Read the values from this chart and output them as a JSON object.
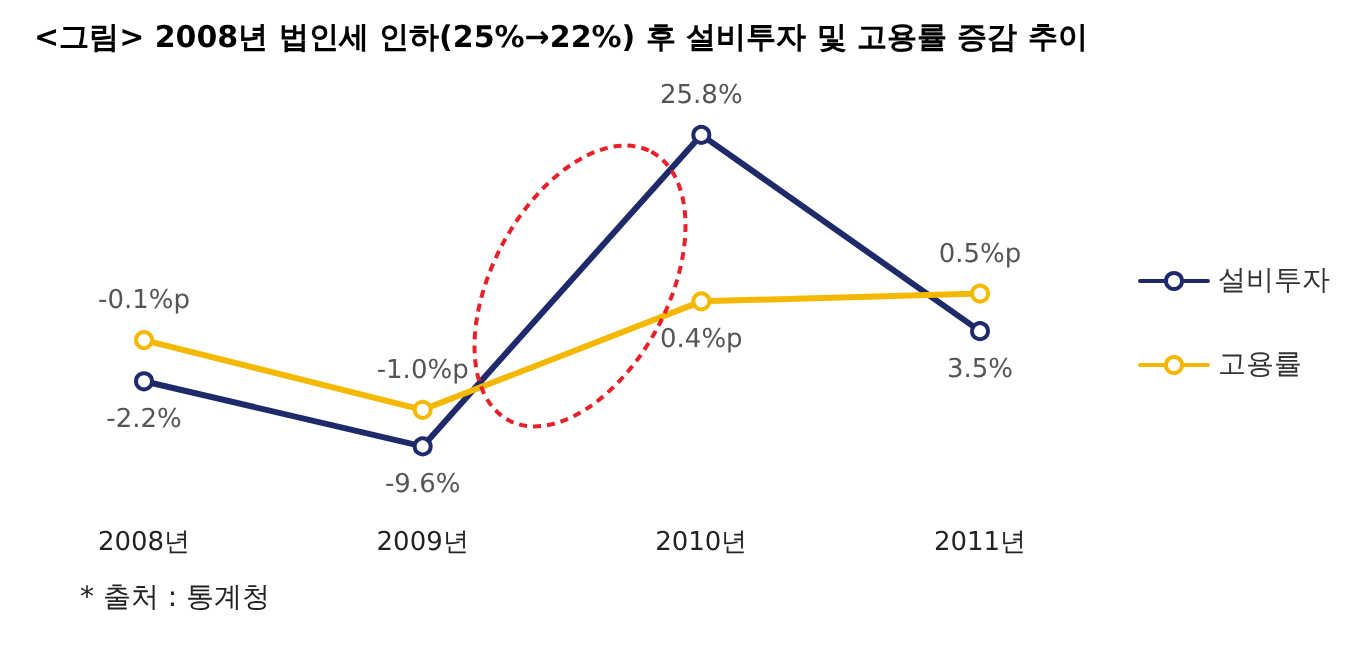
{
  "chart_data": {
    "type": "line",
    "title": "<그림> 2008년 법인세 인하(25%→22%) 후 설비투자 및 고용률 증감 추이",
    "categories": [
      "2008년",
      "2009년",
      "2010년",
      "2011년"
    ],
    "series": [
      {
        "name": "설비투자",
        "color": "#1f2a6b",
        "values": [
          -2.2,
          -9.6,
          25.8,
          3.5
        ],
        "value_labels": [
          "-2.2%",
          "-9.6%",
          "25.8%",
          "3.5%"
        ]
      },
      {
        "name": "고용률",
        "color": "#f5b800",
        "axis": "y2",
        "values": [
          -0.1,
          -1.0,
          0.4,
          0.5
        ],
        "value_labels": [
          "-0.1%p",
          "-1.0%p",
          "0.4%p",
          "0.5%p"
        ]
      }
    ],
    "tick_labels": "x",
    "grid": false,
    "legend": "right",
    "marker": "circle",
    "line_style": "solid",
    "annotations": [
      "* 출처 : 통계청"
    ]
  }
}
